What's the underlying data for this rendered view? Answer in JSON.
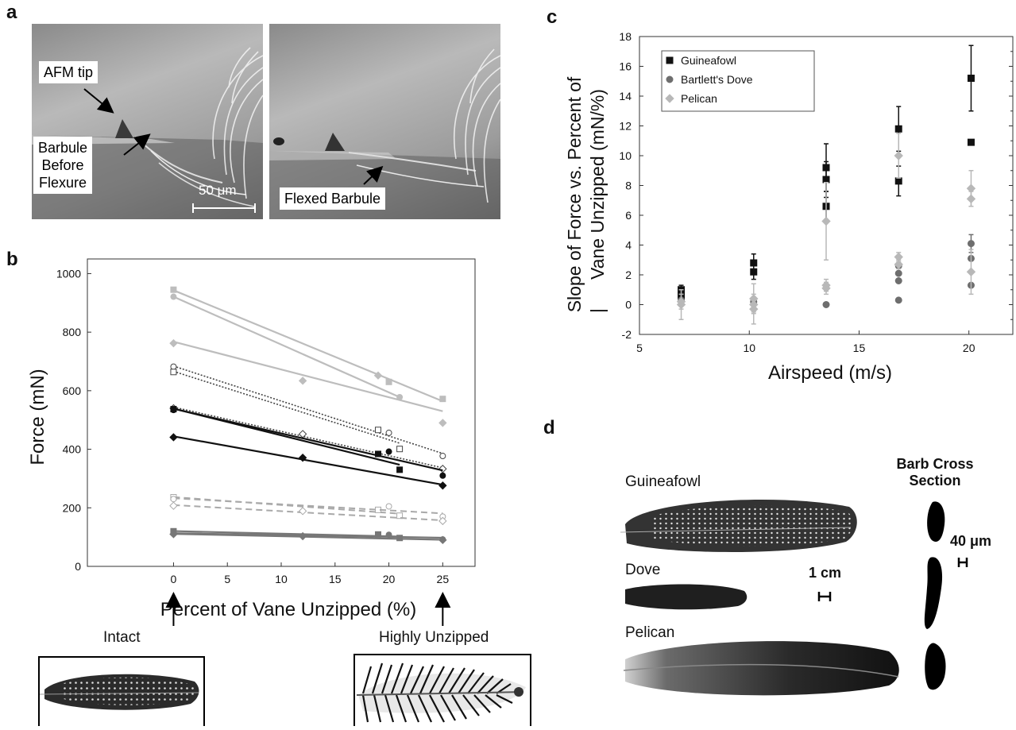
{
  "panel_a": {
    "label": "a",
    "annotations": {
      "afm_tip": "AFM tip",
      "barbule_before": [
        "Barbule",
        "Before",
        "Flexure"
      ],
      "scale_bar": "50 μm",
      "flexed": "Flexed Barbule"
    }
  },
  "panel_b": {
    "label": "b",
    "intact_label": "Intact",
    "unzipped_label": "Highly Unzipped"
  },
  "panel_c": {
    "label": "c"
  },
  "panel_d": {
    "label": "d",
    "guineafowl": "Guineafowl",
    "dove": "Dove",
    "pelican": "Pelican",
    "cross_section_title": [
      "Barb Cross",
      "Section"
    ],
    "scale_1cm": "1 cm",
    "scale_40um": "40 μm"
  },
  "chart_data": [
    {
      "type": "line",
      "xlabel": "Percent of Vane Unzipped (%)",
      "ylabel": "Force (mN)",
      "xlim": [
        -8,
        28
      ],
      "ylim": [
        0,
        1050
      ],
      "xticks": [
        0,
        5,
        10,
        15,
        20,
        25
      ],
      "yticks": [
        0,
        200,
        400,
        600,
        800,
        1000
      ],
      "series": [
        {
          "style": "light-solid",
          "marker": "square-filled",
          "x": [
            0,
            20,
            25
          ],
          "y": [
            945,
            630,
            572
          ]
        },
        {
          "style": "light-solid",
          "marker": "circle-filled",
          "x": [
            0,
            21
          ],
          "y": [
            921,
            578
          ]
        },
        {
          "style": "light-solid",
          "marker": "diamond-filled",
          "x": [
            0,
            12,
            19,
            25
          ],
          "y": [
            762,
            634,
            652,
            490
          ]
        },
        {
          "style": "dotted",
          "marker": "circle-open",
          "x": [
            0,
            20,
            25
          ],
          "y": [
            682,
            456,
            377
          ]
        },
        {
          "style": "dotted",
          "marker": "square-open",
          "x": [
            0,
            19,
            21
          ],
          "y": [
            664,
            466,
            401
          ]
        },
        {
          "style": "dotted",
          "marker": "diamond-open",
          "x": [
            0,
            12,
            25
          ],
          "y": [
            540,
            452,
            333
          ]
        },
        {
          "style": "dark-solid",
          "marker": "square-filled",
          "x": [
            0,
            19,
            21
          ],
          "y": [
            537,
            384,
            330
          ]
        },
        {
          "style": "dark-solid",
          "marker": "circle-filled",
          "x": [
            0,
            20,
            25
          ],
          "y": [
            534,
            392,
            310
          ]
        },
        {
          "style": "dark-solid",
          "marker": "diamond-filled",
          "x": [
            0,
            12,
            25
          ],
          "y": [
            441,
            371,
            276
          ]
        },
        {
          "style": "light-dashed",
          "marker": "square-open",
          "x": [
            0,
            19,
            21
          ],
          "y": [
            236,
            193,
            173
          ]
        },
        {
          "style": "light-dashed",
          "marker": "circle-open",
          "x": [
            0,
            20,
            25
          ],
          "y": [
            230,
            205,
            170
          ]
        },
        {
          "style": "light-dashed",
          "marker": "diamond-open",
          "x": [
            0,
            12,
            25
          ],
          "y": [
            207,
            189,
            155
          ]
        },
        {
          "style": "gray-solid",
          "marker": "square-filled",
          "x": [
            0,
            19,
            21
          ],
          "y": [
            120,
            109,
            97
          ]
        },
        {
          "style": "gray-solid",
          "marker": "circle-filled",
          "x": [
            0,
            20,
            25
          ],
          "y": [
            112,
            108,
            92
          ]
        },
        {
          "style": "gray-solid",
          "marker": "diamond-filled",
          "x": [
            0,
            12,
            25
          ],
          "y": [
            110,
            103,
            90
          ]
        }
      ]
    },
    {
      "type": "scatter",
      "xlabel": "Airspeed (m/s)",
      "ylabel": [
        "Slope of Force vs. Percent of",
        "Vane Unzipped (mN/%)"
      ],
      "ylabel_bar": "|",
      "xlim": [
        5,
        22
      ],
      "ylim": [
        -2,
        18
      ],
      "xticks": [
        5,
        10,
        15,
        20
      ],
      "yticks": [
        -2,
        0,
        2,
        4,
        6,
        8,
        10,
        12,
        14,
        16,
        18
      ],
      "legend": {
        "position": "top-left",
        "entries": [
          "Guineafowl",
          "Bartlett's Dove",
          "Pelican"
        ]
      },
      "series": [
        {
          "name": "Guineafowl",
          "marker": "square",
          "color": "#111111",
          "points": [
            [
              6.9,
              1.0,
              0.3
            ],
            [
              6.9,
              0.6,
              0.3
            ],
            [
              10.2,
              2.8,
              0.6
            ],
            [
              10.2,
              2.2,
              0.5
            ],
            [
              13.5,
              9.2,
              1.6
            ],
            [
              13.5,
              8.4,
              1.2
            ],
            [
              13.5,
              6.6,
              1.0
            ],
            [
              16.8,
              11.8,
              1.5
            ],
            [
              16.8,
              8.3,
              1.0
            ],
            [
              20.1,
              15.2,
              2.2
            ],
            [
              20.1,
              10.9,
              0.0
            ]
          ]
        },
        {
          "name": "Bartlett's Dove",
          "marker": "circle",
          "color": "#6e6e6e",
          "points": [
            [
              6.9,
              0.3,
              0.0
            ],
            [
              10.2,
              0.2,
              0.0
            ],
            [
              13.5,
              0.0,
              0.0
            ],
            [
              16.8,
              2.6,
              0.0
            ],
            [
              16.8,
              2.1,
              0.0
            ],
            [
              16.8,
              1.6,
              0.0
            ],
            [
              16.8,
              0.3,
              0.0
            ],
            [
              20.1,
              4.1,
              0.6
            ],
            [
              20.1,
              3.1,
              0.0
            ],
            [
              20.1,
              1.3,
              0.0
            ]
          ]
        },
        {
          "name": "Pelican",
          "marker": "diamond",
          "color": "#b8b8b8",
          "points": [
            [
              6.9,
              0.0,
              1.0
            ],
            [
              6.9,
              0.2,
              0.5
            ],
            [
              10.2,
              0.4,
              1.0
            ],
            [
              10.2,
              -0.3,
              1.0
            ],
            [
              10.2,
              0.0,
              0.5
            ],
            [
              13.5,
              5.6,
              2.6
            ],
            [
              13.5,
              1.3,
              0.4
            ],
            [
              13.5,
              1.1,
              0.4
            ],
            [
              16.8,
              10.0,
              1.5
            ],
            [
              16.8,
              3.2,
              0.3
            ],
            [
              16.8,
              2.7,
              0.3
            ],
            [
              20.1,
              7.8,
              1.2
            ],
            [
              20.1,
              7.1,
              0.5
            ],
            [
              20.1,
              2.2,
              1.5
            ]
          ]
        }
      ]
    }
  ]
}
